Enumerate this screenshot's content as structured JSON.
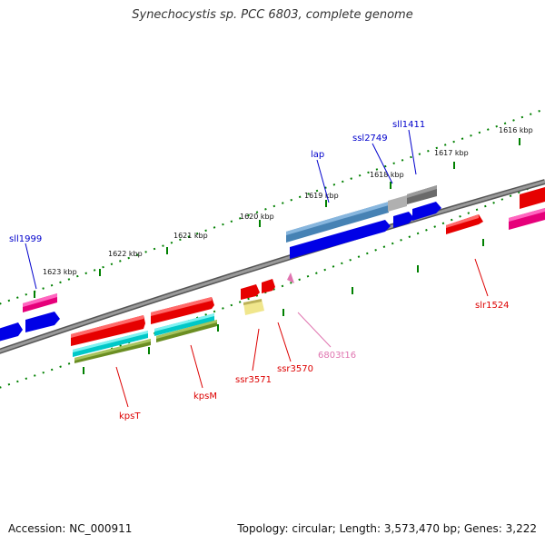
{
  "title": "Synechocystis sp. PCC 6803, complete genome",
  "footer": {
    "accession": "Accession: NC_000911",
    "summary": "Topology: circular; Length: 3,573,470 bp; Genes: 3,222"
  },
  "ruler_labels": [
    "1616 kbp",
    "1617 kbp",
    "1618 kbp",
    "1619 kbp",
    "1620 kbp",
    "1621 kbp",
    "1622 kbp",
    "1623 kbp"
  ],
  "gene_labels": {
    "sll1999": "sll1999",
    "lap": "lap",
    "ssl2749": "ssl2749",
    "sll1411": "sll1411",
    "slr1524": "slr1524",
    "kpsT": "kpsT",
    "kpsM": "kpsM",
    "ssr3571": "ssr3571",
    "ssr3570": "ssr3570",
    "t6803t16": "6803t16"
  },
  "colors": {
    "cds_red": "#e60000",
    "cds_blue": "#0000e6",
    "steel": "#4682b4",
    "pink": "#e6007a",
    "cyan": "#00c8c8",
    "olive": "#6b8e23",
    "khaki": "#f0e68c",
    "gray": "#808080",
    "ticks": "#008000",
    "ncrna": "#e075b0"
  }
}
